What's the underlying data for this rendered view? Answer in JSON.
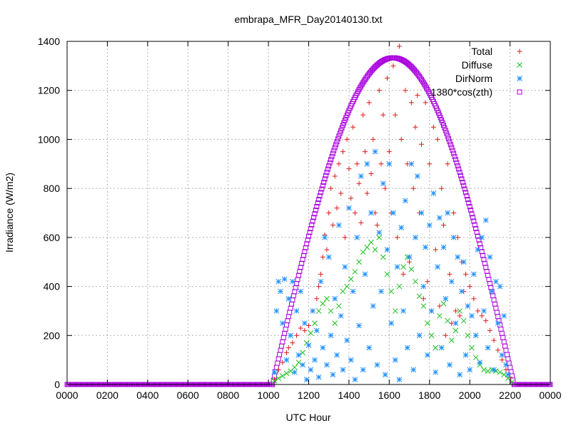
{
  "chart_data": {
    "type": "scatter",
    "title": "embrapa_MFR_Day20140130.txt",
    "xlabel": "UTC Hour",
    "ylabel": "Irradiance (W/m2)",
    "xlim": [
      0,
      24
    ],
    "ylim": [
      0,
      1400
    ],
    "grid": true,
    "legend_position": "top-right",
    "x_ticks": [
      {
        "value": 0,
        "label": "0000"
      },
      {
        "value": 2,
        "label": "0200"
      },
      {
        "value": 4,
        "label": "0400"
      },
      {
        "value": 6,
        "label": "0600"
      },
      {
        "value": 8,
        "label": "0800"
      },
      {
        "value": 10,
        "label": "1000"
      },
      {
        "value": 12,
        "label": "1200"
      },
      {
        "value": 14,
        "label": "1400"
      },
      {
        "value": 16,
        "label": "1600"
      },
      {
        "value": 18,
        "label": "1800"
      },
      {
        "value": 20,
        "label": "2000"
      },
      {
        "value": 22,
        "label": "2200"
      },
      {
        "value": 24,
        "label": "0000"
      }
    ],
    "y_ticks": [
      {
        "value": 0,
        "label": "0"
      },
      {
        "value": 200,
        "label": "200"
      },
      {
        "value": 400,
        "label": "400"
      },
      {
        "value": 600,
        "label": "600"
      },
      {
        "value": 800,
        "label": "800"
      },
      {
        "value": 1000,
        "label": "1000"
      },
      {
        "value": 1200,
        "label": "1200"
      },
      {
        "value": 1400,
        "label": "1400"
      }
    ],
    "series": [
      {
        "name": "Total",
        "marker": "plus",
        "color": "#e0181b",
        "points": [
          [
            10.3,
            20
          ],
          [
            10.5,
            60
          ],
          [
            10.7,
            90
          ],
          [
            10.9,
            130
          ],
          [
            11.0,
            150
          ],
          [
            11.2,
            170
          ],
          [
            11.4,
            200
          ],
          [
            11.6,
            230
          ],
          [
            11.8,
            220
          ],
          [
            12.0,
            240
          ],
          [
            12.2,
            300
          ],
          [
            12.4,
            350
          ],
          [
            12.5,
            400
          ],
          [
            12.6,
            450
          ],
          [
            12.7,
            520
          ],
          [
            12.8,
            610
          ],
          [
            12.9,
            550
          ],
          [
            13.0,
            700
          ],
          [
            13.1,
            800
          ],
          [
            13.2,
            650
          ],
          [
            13.3,
            850
          ],
          [
            13.4,
            720
          ],
          [
            13.5,
            900
          ],
          [
            13.6,
            780
          ],
          [
            13.7,
            950
          ],
          [
            13.8,
            600
          ],
          [
            13.9,
            1000
          ],
          [
            14.0,
            880
          ],
          [
            14.1,
            760
          ],
          [
            14.2,
            1050
          ],
          [
            14.3,
            700
          ],
          [
            14.4,
            900
          ],
          [
            14.5,
            820
          ],
          [
            14.6,
            660
          ],
          [
            14.7,
            1100
          ],
          [
            14.8,
            950
          ],
          [
            14.9,
            780
          ],
          [
            15.0,
            1150
          ],
          [
            15.1,
            860
          ],
          [
            15.2,
            1000
          ],
          [
            15.3,
            700
          ],
          [
            15.4,
            650
          ],
          [
            15.5,
            1200
          ],
          [
            15.6,
            900
          ],
          [
            15.7,
            1100
          ],
          [
            15.8,
            800
          ],
          [
            15.9,
            1250
          ],
          [
            16.0,
            950
          ],
          [
            16.1,
            700
          ],
          [
            16.2,
            1300
          ],
          [
            16.3,
            1100
          ],
          [
            16.4,
            600
          ],
          [
            16.5,
            1380
          ],
          [
            16.6,
            1000
          ],
          [
            16.7,
            450
          ],
          [
            16.8,
            1200
          ],
          [
            16.9,
            900
          ],
          [
            17.0,
            500
          ],
          [
            17.1,
            1150
          ],
          [
            17.2,
            800
          ],
          [
            17.3,
            1050
          ],
          [
            17.4,
            1180
          ],
          [
            17.5,
            700
          ],
          [
            17.6,
            980
          ],
          [
            17.7,
            350
          ],
          [
            17.8,
            1150
          ],
          [
            17.9,
            420
          ],
          [
            18.0,
            900
          ],
          [
            18.1,
            300
          ],
          [
            18.2,
            1050
          ],
          [
            18.3,
            550
          ],
          [
            18.4,
            1000
          ],
          [
            18.5,
            320
          ],
          [
            18.6,
            800
          ],
          [
            18.7,
            650
          ],
          [
            18.8,
            200
          ],
          [
            18.9,
            900
          ],
          [
            19.0,
            450
          ],
          [
            19.1,
            250
          ],
          [
            19.2,
            700
          ],
          [
            19.3,
            300
          ],
          [
            19.4,
            600
          ],
          [
            19.5,
            280
          ],
          [
            19.6,
            500
          ],
          [
            19.7,
            380
          ],
          [
            19.8,
            450
          ],
          [
            19.9,
            320
          ],
          [
            20.0,
            400
          ],
          [
            20.2,
            350
          ],
          [
            20.4,
            300
          ],
          [
            20.6,
            280
          ],
          [
            20.8,
            260
          ],
          [
            21.0,
            220
          ],
          [
            21.2,
            180
          ],
          [
            21.4,
            140
          ],
          [
            21.6,
            100
          ],
          [
            21.8,
            60
          ],
          [
            22.0,
            30
          ]
        ]
      },
      {
        "name": "Diffuse",
        "marker": "cross",
        "color": "#18c01b",
        "points": [
          [
            10.3,
            15
          ],
          [
            10.5,
            25
          ],
          [
            10.7,
            35
          ],
          [
            10.9,
            45
          ],
          [
            11.1,
            55
          ],
          [
            11.3,
            70
          ],
          [
            11.5,
            90
          ],
          [
            11.7,
            130
          ],
          [
            11.9,
            170
          ],
          [
            12.1,
            210
          ],
          [
            12.3,
            250
          ],
          [
            12.5,
            300
          ],
          [
            12.7,
            330
          ],
          [
            12.9,
            350
          ],
          [
            13.1,
            300
          ],
          [
            13.3,
            250
          ],
          [
            13.5,
            320
          ],
          [
            13.7,
            380
          ],
          [
            13.9,
            400
          ],
          [
            14.1,
            430
          ],
          [
            14.3,
            460
          ],
          [
            14.5,
            500
          ],
          [
            14.7,
            540
          ],
          [
            14.9,
            560
          ],
          [
            15.1,
            580
          ],
          [
            15.3,
            550
          ],
          [
            15.5,
            600
          ],
          [
            15.7,
            520
          ],
          [
            15.9,
            450
          ],
          [
            16.1,
            380
          ],
          [
            16.3,
            300
          ],
          [
            16.5,
            400
          ],
          [
            16.7,
            480
          ],
          [
            16.9,
            520
          ],
          [
            17.1,
            470
          ],
          [
            17.3,
            420
          ],
          [
            17.5,
            360
          ],
          [
            17.7,
            320
          ],
          [
            17.9,
            250
          ],
          [
            18.1,
            200
          ],
          [
            18.3,
            150
          ],
          [
            18.5,
            280
          ],
          [
            18.7,
            330
          ],
          [
            18.9,
            260
          ],
          [
            19.1,
            180
          ],
          [
            19.3,
            220
          ],
          [
            19.5,
            300
          ],
          [
            19.7,
            260
          ],
          [
            19.9,
            200
          ],
          [
            20.1,
            150
          ],
          [
            20.3,
            110
          ],
          [
            20.5,
            80
          ],
          [
            20.7,
            60
          ],
          [
            20.9,
            55
          ],
          [
            21.1,
            60
          ],
          [
            21.3,
            55
          ],
          [
            21.5,
            50
          ],
          [
            21.7,
            40
          ],
          [
            21.9,
            25
          ],
          [
            22.1,
            10
          ]
        ]
      },
      {
        "name": "DirNorm",
        "marker": "star",
        "color": "#1e90ff",
        "points": [
          [
            10.3,
            50
          ],
          [
            10.4,
            300
          ],
          [
            10.5,
            420
          ],
          [
            10.6,
            380
          ],
          [
            10.7,
            250
          ],
          [
            10.8,
            430
          ],
          [
            10.9,
            100
          ],
          [
            11.0,
            350
          ],
          [
            11.1,
            200
          ],
          [
            11.2,
            420
          ],
          [
            11.3,
            50
          ],
          [
            11.4,
            300
          ],
          [
            11.5,
            120
          ],
          [
            11.6,
            380
          ],
          [
            11.7,
            80
          ],
          [
            11.8,
            250
          ],
          [
            11.9,
            20
          ],
          [
            12.0,
            160
          ],
          [
            12.1,
            60
          ],
          [
            12.2,
            300
          ],
          [
            12.3,
            100
          ],
          [
            12.4,
            220
          ],
          [
            12.5,
            30
          ],
          [
            12.6,
            420
          ],
          [
            12.7,
            150
          ],
          [
            12.8,
            600
          ],
          [
            12.9,
            80
          ],
          [
            13.0,
            520
          ],
          [
            13.1,
            200
          ],
          [
            13.2,
            40
          ],
          [
            13.3,
            350
          ],
          [
            13.4,
            120
          ],
          [
            13.5,
            650
          ],
          [
            13.6,
            280
          ],
          [
            13.7,
            60
          ],
          [
            13.8,
            480
          ],
          [
            13.9,
            180
          ],
          [
            14.0,
            720
          ],
          [
            14.1,
            100
          ],
          [
            14.2,
            380
          ],
          [
            14.3,
            20
          ],
          [
            14.4,
            600
          ],
          [
            14.5,
            240
          ],
          [
            14.6,
            850
          ],
          [
            14.7,
            60
          ],
          [
            14.8,
            450
          ],
          [
            14.9,
            900
          ],
          [
            15.0,
            150
          ],
          [
            15.1,
            700
          ],
          [
            15.2,
            320
          ],
          [
            15.3,
            950
          ],
          [
            15.4,
            80
          ],
          [
            15.5,
            620
          ],
          [
            15.6,
            380
          ],
          [
            15.7,
            820
          ],
          [
            15.8,
            40
          ],
          [
            15.9,
            550
          ],
          [
            16.0,
            900
          ],
          [
            16.1,
            250
          ],
          [
            16.2,
            700
          ],
          [
            16.3,
            100
          ],
          [
            16.4,
            480
          ],
          [
            16.5,
            20
          ],
          [
            16.6,
            640
          ],
          [
            16.7,
            300
          ],
          [
            16.8,
            750
          ],
          [
            16.9,
            150
          ],
          [
            17.0,
            520
          ],
          [
            17.1,
            900
          ],
          [
            17.2,
            60
          ],
          [
            17.3,
            600
          ],
          [
            17.4,
            850
          ],
          [
            17.5,
            200
          ],
          [
            17.6,
            700
          ],
          [
            17.7,
            400
          ],
          [
            17.8,
            560
          ],
          [
            17.9,
            120
          ],
          [
            18.0,
            650
          ],
          [
            18.1,
            300
          ],
          [
            18.2,
            780
          ],
          [
            18.3,
            50
          ],
          [
            18.4,
            480
          ],
          [
            18.5,
            680
          ],
          [
            18.6,
            150
          ],
          [
            18.7,
            560
          ],
          [
            18.8,
            350
          ],
          [
            18.9,
            700
          ],
          [
            19.0,
            80
          ],
          [
            19.1,
            420
          ],
          [
            19.2,
            600
          ],
          [
            19.3,
            250
          ],
          [
            19.4,
            520
          ],
          [
            19.5,
            40
          ],
          [
            19.6,
            380
          ],
          [
            19.7,
            500
          ],
          [
            19.8,
            120
          ],
          [
            19.9,
            320
          ],
          [
            20.0,
            60
          ],
          [
            20.1,
            280
          ],
          [
            20.2,
            450
          ],
          [
            20.3,
            200
          ],
          [
            20.4,
            550
          ],
          [
            20.5,
            90
          ],
          [
            20.6,
            600
          ],
          [
            20.7,
            300
          ],
          [
            20.8,
            670
          ],
          [
            20.9,
            150
          ],
          [
            21.0,
            520
          ],
          [
            21.1,
            380
          ],
          [
            21.2,
            60
          ],
          [
            21.3,
            420
          ],
          [
            21.4,
            250
          ],
          [
            21.5,
            400
          ],
          [
            21.6,
            120
          ],
          [
            21.7,
            280
          ],
          [
            21.8,
            80
          ],
          [
            21.9,
            40
          ]
        ]
      },
      {
        "name": "1380*cos(zth)",
        "marker": "square",
        "color": "#aa00dd",
        "curve": {
          "x_start": 0,
          "x_end": 24,
          "step": 0.05,
          "rise": 10.2,
          "set": 22.2,
          "peak_x": 16.2,
          "peak_y": 1333
        }
      }
    ]
  }
}
